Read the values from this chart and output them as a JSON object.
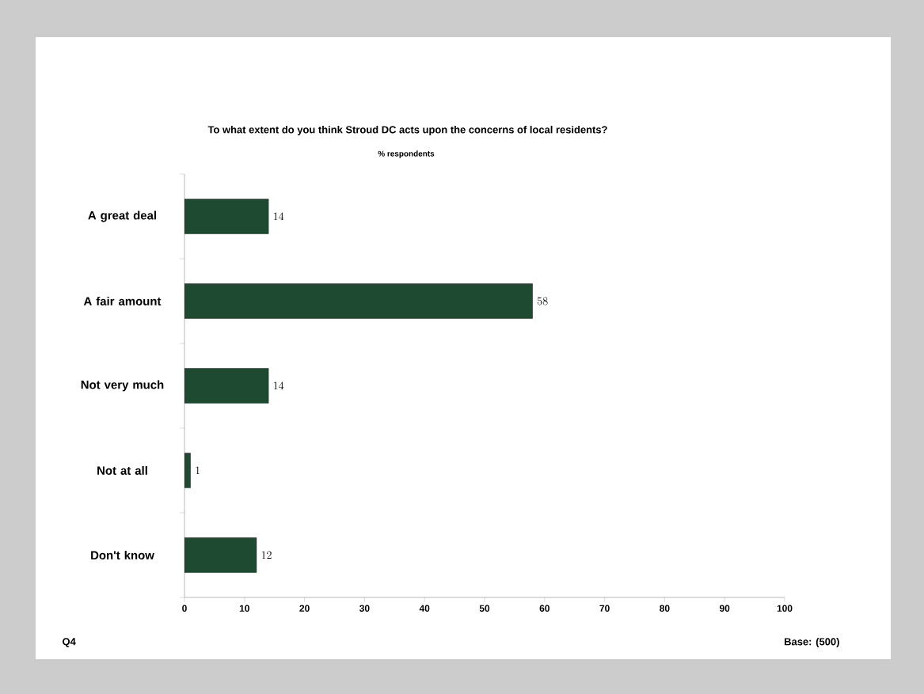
{
  "chart_data": {
    "type": "bar",
    "orientation": "horizontal",
    "title": "To what extent do you think Stroud DC acts upon the concerns of local residents?",
    "subtitle": "% respondents",
    "categories": [
      "A great deal",
      "A fair amount",
      "Not very much",
      "Not at all",
      "Don't know"
    ],
    "values": [
      14,
      58,
      14,
      1,
      12
    ],
    "color": "#1e4a32",
    "xlim": [
      0,
      100
    ],
    "xticks": [
      0,
      10,
      20,
      30,
      40,
      50,
      60,
      70,
      80,
      90,
      100
    ],
    "data_labels": true,
    "annotations": [
      "Q4",
      "Base: (500)"
    ]
  }
}
